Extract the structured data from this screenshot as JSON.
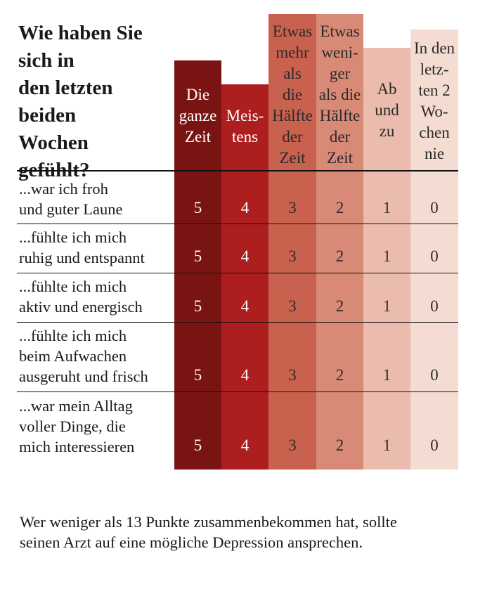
{
  "title": "Wie haben Sie sich in\nden letzten\nbeiden\nWochen\ngefühlt?",
  "columns": [
    {
      "label": "Die\nganze\nZeit",
      "color": "#7a1412"
    },
    {
      "label": "Meis-\ntens",
      "color": "#ad1e1f"
    },
    {
      "label": "Etwas\nmehr\nals\ndie\nHälfte\nder\nZeit",
      "color": "#c8624e"
    },
    {
      "label": "Etwas\nweni-\nger\nals die\nHälfte\nder\nZeit",
      "color": "#d98a76"
    },
    {
      "label": "Ab\nund\nzu",
      "color": "#ebbcad"
    },
    {
      "label": "In den\nletz-\nten 2\nWo-\nchen\nnie",
      "color": "#f5dcd3"
    }
  ],
  "rows": [
    {
      "label": "...war ich froh\nund guter Laune",
      "scores": [
        "5",
        "4",
        "3",
        "2",
        "1",
        "0"
      ]
    },
    {
      "label": "...fühlte ich mich\nruhig und entspannt",
      "scores": [
        "5",
        "4",
        "3",
        "2",
        "1",
        "0"
      ]
    },
    {
      "label": "...fühlte ich mich\naktiv und energisch",
      "scores": [
        "5",
        "4",
        "3",
        "2",
        "1",
        "0"
      ]
    },
    {
      "label": "...fühlte ich mich\nbeim Aufwachen\nausgeruht und frisch",
      "scores": [
        "5",
        "4",
        "3",
        "2",
        "1",
        "0"
      ]
    },
    {
      "label": "...war mein Alltag\nvoller Dinge, die\nmich interessieren",
      "scores": [
        "5",
        "4",
        "3",
        "2",
        "1",
        "0"
      ]
    }
  ],
  "footnote": "Wer weniger als 13 Punkte zusammenbekommen hat, sollte\nseinen Arzt auf eine mögliche Depression ansprechen."
}
